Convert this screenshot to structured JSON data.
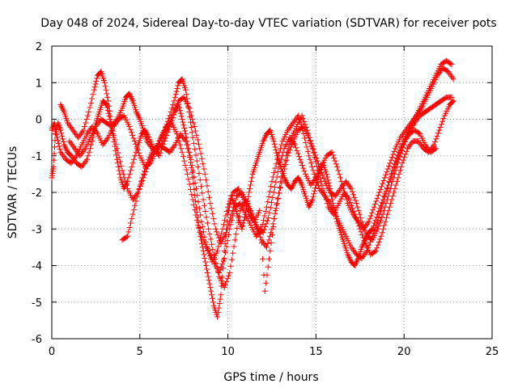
{
  "chart_data": {
    "type": "scatter",
    "title": "Day 048 of 2024, Sidereal Day-to-day VTEC variation (SDTVAR) for receiver pots",
    "xlabel": "GPS time / hours",
    "ylabel": "SDTVAR / TECUs",
    "xlim": [
      0,
      25
    ],
    "ylim": [
      -6,
      2
    ],
    "x_ticks": [
      0,
      5,
      10,
      15,
      20,
      25
    ],
    "y_ticks": [
      -6,
      -5,
      -4,
      -3,
      -2,
      -1,
      0,
      1,
      2
    ],
    "x_tick_labels": [
      "0",
      "5",
      "10",
      "15",
      "20",
      "25"
    ],
    "y_tick_labels": [
      "-6",
      "-5",
      "-4",
      "-3",
      "-2",
      "-1",
      "0",
      "1",
      "2"
    ],
    "grid": true,
    "marker": "+",
    "color": "#ff0000",
    "series": [
      {
        "x": [
          0.0,
          0.1,
          0.2,
          0.35,
          0.5,
          0.7,
          0.9,
          1.1,
          1.4,
          1.7,
          2.0,
          2.3,
          2.5,
          2.7,
          2.9,
          3.1,
          3.3,
          3.5,
          3.7,
          3.9,
          4.1,
          4.3,
          4.6,
          4.9,
          5.1,
          5.3,
          5.5,
          5.8,
          6.1,
          6.4,
          6.7,
          7.0,
          7.2,
          7.4,
          7.6,
          7.8,
          8.0,
          8.2,
          8.4,
          8.6,
          8.8,
          9.0,
          9.2,
          9.4,
          9.6,
          9.8,
          10.0,
          10.2,
          10.4,
          10.6,
          10.8,
          11.0,
          11.2,
          11.4,
          11.6,
          11.8,
          12.0,
          12.2,
          12.4,
          12.6,
          12.8,
          13.0,
          13.2,
          13.4,
          13.6,
          13.8,
          14.0,
          14.2,
          14.4,
          14.6,
          14.8,
          15.0,
          15.2,
          15.4,
          15.6,
          15.8,
          16.0,
          16.2,
          16.4,
          16.6,
          16.8,
          17.0,
          17.2,
          17.4,
          17.6,
          17.8,
          18.0,
          18.2,
          18.5,
          18.8,
          19.1,
          19.4,
          19.7,
          20.0,
          20.3,
          20.6,
          20.9,
          21.2,
          21.5,
          21.8,
          22.1,
          22.4,
          22.7
        ],
        "y": [
          -1.6,
          -1.3,
          -0.4,
          -0.1,
          -0.3,
          -0.7,
          -0.9,
          -1.0,
          -1.2,
          -1.3,
          -1.1,
          -0.6,
          -0.1,
          0.2,
          0.5,
          0.4,
          0.0,
          -0.5,
          -1.1,
          -1.6,
          -1.9,
          -1.7,
          -1.2,
          -0.7,
          -0.4,
          -0.3,
          -0.5,
          -0.8,
          -1.0,
          -0.6,
          -0.2,
          0.2,
          0.4,
          0.0,
          -0.4,
          -0.9,
          -1.6,
          -2.4,
          -3.1,
          -3.6,
          -4.1,
          -4.6,
          -5.1,
          -5.4,
          -4.8,
          -3.6,
          -2.6,
          -2.1,
          -2.4,
          -2.7,
          -3.0,
          -2.6,
          -2.0,
          -1.5,
          -1.2,
          -0.9,
          -0.6,
          -0.4,
          -0.3,
          -0.6,
          -1.0,
          -1.3,
          -1.6,
          -1.8,
          -1.9,
          -1.7,
          -1.6,
          -1.8,
          -2.1,
          -2.4,
          -2.2,
          -1.8,
          -1.4,
          -1.2,
          -1.5,
          -1.9,
          -2.4,
          -2.8,
          -3.1,
          -3.4,
          -3.7,
          -3.9,
          -4.0,
          -3.8,
          -3.5,
          -3.3,
          -3.1,
          -3.0,
          -2.6,
          -2.2,
          -1.8,
          -1.4,
          -1.0,
          -0.6,
          -0.3,
          -0.1,
          0.1,
          0.2,
          0.3,
          0.4,
          0.5,
          0.6,
          0.6
        ]
      },
      {
        "x": [
          0.5,
          0.7,
          0.9,
          1.2,
          1.5,
          1.8,
          2.1,
          2.4,
          2.6,
          2.8,
          3.0,
          3.2,
          3.4,
          3.7,
          4.0,
          4.3,
          4.6,
          4.9,
          5.2,
          5.5,
          5.8,
          6.1,
          6.4,
          6.7,
          7.0,
          7.2,
          7.4,
          7.6,
          7.8,
          8.0,
          8.3,
          8.6,
          8.9,
          9.2,
          9.5,
          9.8,
          10.1,
          10.4,
          10.7,
          11.0,
          11.3,
          11.6,
          11.9,
          12.2,
          12.5,
          12.8,
          13.1,
          13.4,
          13.7,
          14.0,
          14.3,
          14.6,
          14.9,
          15.2,
          15.5,
          15.8,
          16.1,
          16.4,
          16.7,
          17.0,
          17.3,
          17.6,
          17.9,
          18.2,
          18.5,
          18.8,
          19.1,
          19.4,
          19.7,
          20.0,
          20.3,
          20.6,
          20.9,
          21.2,
          21.5,
          21.8,
          22.1,
          22.4,
          22.7
        ],
        "y": [
          0.4,
          0.2,
          -0.1,
          -0.3,
          -0.5,
          -0.3,
          0.2,
          0.8,
          1.2,
          1.3,
          1.0,
          0.5,
          -0.2,
          -0.8,
          -1.4,
          -1.9,
          -2.2,
          -2.0,
          -1.6,
          -1.2,
          -0.9,
          -0.6,
          -0.3,
          0.1,
          0.6,
          1.0,
          1.1,
          0.8,
          0.2,
          -0.5,
          -1.3,
          -2.2,
          -3.0,
          -3.7,
          -4.3,
          -4.6,
          -4.2,
          -3.3,
          -2.5,
          -2.2,
          -2.5,
          -2.9,
          -3.3,
          -3.5,
          -3.0,
          -2.3,
          -1.6,
          -1.0,
          -0.6,
          -0.3,
          -0.2,
          -0.5,
          -0.9,
          -1.3,
          -1.7,
          -2.0,
          -2.1,
          -1.9,
          -1.7,
          -1.9,
          -2.3,
          -2.8,
          -3.2,
          -3.3,
          -3.0,
          -2.6,
          -2.1,
          -1.6,
          -1.1,
          -0.7,
          -0.3,
          0.0,
          0.3,
          0.6,
          0.9,
          1.2,
          1.5,
          1.6,
          1.5
        ]
      },
      {
        "x": [
          1.0,
          1.3,
          1.6,
          1.9,
          2.2,
          2.5,
          2.8,
          3.1,
          3.4,
          3.7,
          4.0,
          4.2,
          4.4,
          4.6,
          4.8,
          5.0,
          5.2,
          5.4,
          5.7,
          6.0,
          6.3,
          6.6,
          6.9,
          7.2,
          7.5,
          7.8,
          8.1,
          8.4,
          8.7,
          9.0,
          9.3,
          9.6,
          9.9,
          10.2,
          10.5,
          10.8,
          11.1,
          11.4,
          11.7,
          12.0,
          12.3,
          12.6,
          12.9,
          13.2,
          13.5,
          13.8,
          14.1,
          14.4,
          14.7,
          15.0,
          15.3,
          15.6,
          15.9,
          16.2,
          16.5,
          16.8,
          17.1,
          17.4,
          17.7,
          18.0,
          18.3,
          18.6,
          18.9,
          19.2,
          19.5,
          19.8,
          20.1,
          20.4,
          20.7,
          21.0,
          21.3,
          21.6,
          21.9,
          22.2,
          22.5,
          22.8
        ],
        "y": [
          -0.6,
          -0.8,
          -1.0,
          -0.8,
          -0.5,
          -0.2,
          0.0,
          -0.1,
          -0.2,
          0.0,
          0.3,
          0.6,
          0.7,
          0.5,
          0.2,
          0.0,
          -0.3,
          -0.6,
          -0.8,
          -0.9,
          -0.6,
          -0.2,
          0.2,
          0.5,
          0.6,
          0.3,
          -0.2,
          -0.8,
          -1.5,
          -2.3,
          -3.0,
          -3.4,
          -3.1,
          -2.6,
          -2.1,
          -2.0,
          -2.3,
          -2.7,
          -3.0,
          -3.1,
          -2.7,
          -2.0,
          -1.3,
          -0.8,
          -0.5,
          -0.7,
          -1.1,
          -1.5,
          -1.8,
          -1.6,
          -1.3,
          -1.0,
          -0.9,
          -1.3,
          -1.8,
          -2.3,
          -2.6,
          -2.8,
          -3.0,
          -2.8,
          -2.4,
          -2.0,
          -1.6,
          -1.2,
          -0.8,
          -0.5,
          -0.3,
          -0.1,
          0.1,
          0.3,
          0.6,
          0.9,
          1.2,
          1.4,
          1.3,
          1.1
        ]
      },
      {
        "x": [
          4.0,
          4.3,
          4.6,
          4.9,
          5.2,
          5.5,
          5.8,
          6.1,
          6.4,
          6.7,
          7.0,
          7.3,
          7.6,
          7.9,
          8.2,
          8.5,
          8.8,
          9.1,
          9.4,
          9.7,
          10.0,
          10.3,
          10.6,
          10.9,
          11.2,
          11.5,
          11.8,
          12.1,
          12.4,
          12.7,
          13.0,
          13.3,
          13.6,
          13.9,
          14.2,
          14.5,
          14.8,
          15.1,
          15.4,
          15.7,
          16.0,
          16.3,
          16.6,
          16.9,
          17.2,
          17.5,
          17.8,
          18.1,
          18.4,
          18.7,
          19.0,
          19.3,
          19.6,
          19.9,
          20.2,
          20.5,
          20.8,
          21.1,
          21.4,
          21.7,
          22.0,
          22.3,
          22.6,
          22.8
        ],
        "y": [
          -3.3,
          -3.2,
          -2.6,
          -2.0,
          -1.5,
          -1.1,
          -0.8,
          -0.7,
          -0.8,
          -0.9,
          -0.7,
          -0.4,
          -0.6,
          -1.1,
          -1.9,
          -2.8,
          -3.5,
          -3.9,
          -3.6,
          -3.0,
          -2.4,
          -2.0,
          -1.9,
          -2.2,
          -2.6,
          -2.8,
          -2.5,
          -4.7,
          -3.6,
          -2.5,
          -1.7,
          -1.0,
          -0.5,
          -0.2,
          0.1,
          -0.3,
          -0.8,
          -1.4,
          -1.9,
          -2.4,
          -2.6,
          -2.3,
          -2.0,
          -2.2,
          -2.6,
          -3.0,
          -3.4,
          -3.7,
          -3.6,
          -3.2,
          -2.7,
          -2.2,
          -1.7,
          -1.2,
          -0.8,
          -0.6,
          -0.6,
          -0.8,
          -0.9,
          -0.7,
          -0.3,
          0.1,
          0.4,
          0.5
        ]
      },
      {
        "x": [
          0.0,
          0.15,
          0.3,
          0.5,
          0.8,
          1.1,
          1.4,
          1.7,
          2.0,
          2.3,
          2.6,
          2.9,
          3.2,
          3.5,
          3.8,
          4.1,
          4.4,
          4.7,
          5.0,
          5.3,
          5.6,
          5.9,
          6.2,
          6.5,
          6.8,
          7.1,
          7.4,
          7.7,
          8.0,
          8.3,
          8.6,
          8.9,
          9.2,
          9.5,
          9.8,
          10.1,
          10.4,
          10.7,
          11.0,
          11.3,
          11.6,
          11.9,
          12.2,
          12.5,
          12.8,
          13.1,
          13.4,
          13.7,
          14.0,
          14.3,
          14.6,
          14.9,
          15.2,
          15.5,
          15.8,
          16.1,
          16.4,
          16.7,
          17.0,
          17.3,
          17.6,
          17.9,
          18.2,
          18.5,
          18.8,
          19.1,
          19.4,
          19.7,
          20.0,
          20.3,
          20.6,
          20.9,
          21.2,
          21.5,
          21.8
        ],
        "y": [
          -0.3,
          -0.1,
          -0.5,
          -0.9,
          -1.1,
          -1.2,
          -1.0,
          -0.7,
          -0.4,
          -0.2,
          -0.4,
          -0.7,
          -0.5,
          -0.2,
          0.0,
          0.1,
          -0.2,
          -0.6,
          -1.0,
          -1.3,
          -1.2,
          -0.9,
          -0.5,
          -0.2,
          -0.1,
          -0.4,
          -0.9,
          -1.5,
          -2.2,
          -2.9,
          -3.3,
          -3.6,
          -3.9,
          -4.2,
          -3.8,
          -3.0,
          -2.4,
          -2.3,
          -2.6,
          -2.9,
          -3.2,
          -3.0,
          -2.4,
          -1.7,
          -1.1,
          -0.6,
          -0.3,
          -0.1,
          0.1,
          -0.4,
          -1.0,
          -1.5,
          -1.9,
          -2.1,
          -2.3,
          -2.6,
          -2.9,
          -3.2,
          -3.5,
          -3.7,
          -3.8,
          -3.6,
          -3.2,
          -2.8,
          -2.3,
          -1.8,
          -1.3,
          -0.9,
          -0.6,
          -0.4,
          -0.3,
          -0.4,
          -0.7,
          -0.9,
          -0.8
        ]
      }
    ]
  }
}
